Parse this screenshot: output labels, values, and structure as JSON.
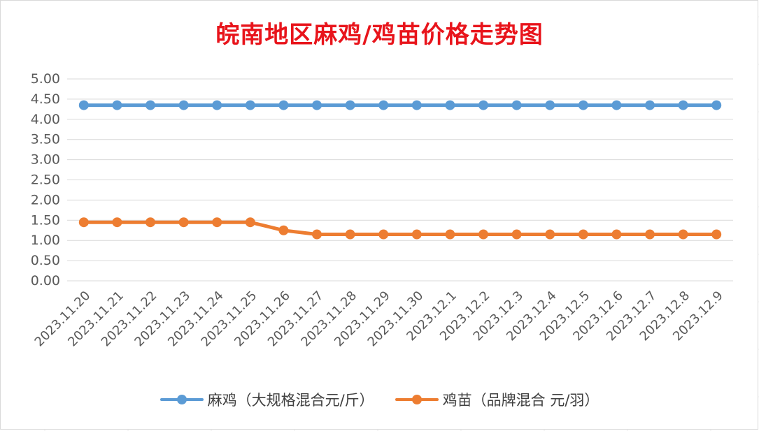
{
  "chart_data": {
    "type": "line",
    "title": "皖南地区麻鸡/鸡苗价格走势图",
    "categories": [
      "2023.11.20",
      "2023.11.21",
      "2023.11.22",
      "2023.11.23",
      "2023.11.24",
      "2023.11.25",
      "2023.11.26",
      "2023.11.27",
      "2023.11.28",
      "2023.11.29",
      "2023.11.30",
      "2023.12.1",
      "2023.12.2",
      "2023.12.3",
      "2023.12.4",
      "2023.12.5",
      "2023.12.6",
      "2023.12.7",
      "2023.12.8",
      "2023.12.9"
    ],
    "series": [
      {
        "name": "麻鸡（大规格混合元/斤）",
        "color": "#5b9bd5",
        "values": [
          4.35,
          4.35,
          4.35,
          4.35,
          4.35,
          4.35,
          4.35,
          4.35,
          4.35,
          4.35,
          4.35,
          4.35,
          4.35,
          4.35,
          4.35,
          4.35,
          4.35,
          4.35,
          4.35,
          4.35
        ]
      },
      {
        "name": "鸡苗（品牌混合 元/羽）",
        "color": "#ed7d31",
        "values": [
          1.45,
          1.45,
          1.45,
          1.45,
          1.45,
          1.45,
          1.25,
          1.15,
          1.15,
          1.15,
          1.15,
          1.15,
          1.15,
          1.15,
          1.15,
          1.15,
          1.15,
          1.15,
          1.15,
          1.15
        ]
      }
    ],
    "ylim": [
      0,
      5
    ],
    "yticks": [
      "0.00",
      "0.50",
      "1.00",
      "1.50",
      "2.00",
      "2.50",
      "3.00",
      "3.50",
      "4.00",
      "4.50",
      "5.00"
    ],
    "ytick_values": [
      0,
      0.5,
      1,
      1.5,
      2,
      2.5,
      3,
      3.5,
      4,
      4.5,
      5
    ],
    "grid": true,
    "legend": "bottom",
    "xlabel": "",
    "ylabel": ""
  }
}
